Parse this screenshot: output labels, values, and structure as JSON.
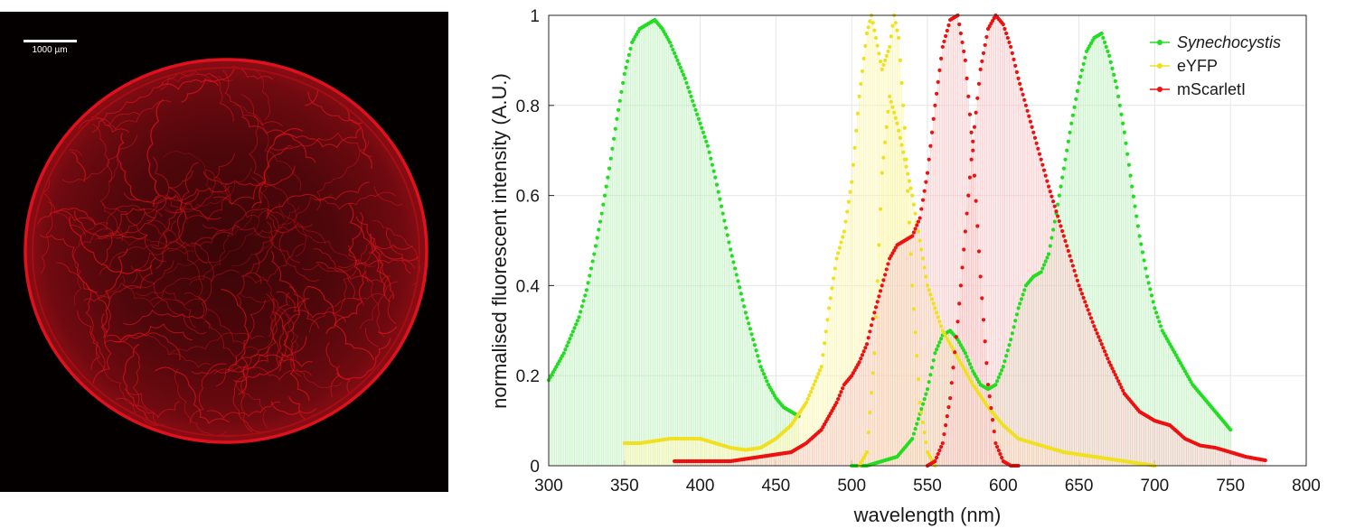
{
  "micrograph": {
    "scale_bar_label": "1000 µm",
    "colors": {
      "background": "#050000",
      "colony": "#e0101c"
    }
  },
  "chart_data": {
    "type": "line",
    "title": "",
    "xlabel": "wavelength (nm)",
    "ylabel": "normalised fluorescent intensity (A.U.)",
    "xlim": [
      300,
      800
    ],
    "ylim": [
      0,
      1
    ],
    "xticks": [
      300,
      350,
      400,
      450,
      500,
      550,
      600,
      650,
      700,
      750,
      800
    ],
    "yticks": [
      0,
      0.2,
      0.4,
      0.6,
      0.8,
      1
    ],
    "ytick_labels": [
      "0",
      "0.2",
      "0.4",
      "0.6",
      "0.8",
      "1"
    ],
    "grid": true,
    "legend_position": "top-right",
    "series": [
      {
        "name": "Synechocystis",
        "name_style": "italic",
        "color": "#22dd22",
        "fill": "#b8f0b8",
        "curves": [
          {
            "role": "excitation",
            "x": [
              300,
              305,
              310,
              315,
              320,
              325,
              330,
              335,
              340,
              345,
              350,
              355,
              360,
              365,
              370,
              375,
              380,
              385,
              390,
              395,
              400,
              405,
              410,
              415,
              420,
              425,
              430,
              435,
              440,
              445,
              450,
              455,
              460,
              465
            ],
            "y": [
              0.19,
              0.22,
              0.25,
              0.29,
              0.33,
              0.39,
              0.47,
              0.56,
              0.66,
              0.77,
              0.87,
              0.94,
              0.97,
              0.98,
              0.99,
              0.97,
              0.94,
              0.9,
              0.86,
              0.81,
              0.76,
              0.71,
              0.64,
              0.56,
              0.48,
              0.41,
              0.34,
              0.28,
              0.22,
              0.18,
              0.15,
              0.13,
              0.12,
              0.11
            ]
          },
          {
            "role": "emission",
            "x": [
              500,
              510,
              520,
              530,
              540,
              550,
              555,
              560,
              565,
              570,
              575,
              580,
              585,
              590,
              595,
              600,
              605,
              610,
              615,
              620,
              625,
              630,
              635,
              640,
              645,
              650,
              655,
              660,
              665,
              670,
              675,
              680,
              685,
              690,
              695,
              700,
              705,
              710,
              715,
              720,
              725,
              730,
              735,
              740,
              745,
              750
            ],
            "y": [
              0.0,
              0.0,
              0.01,
              0.02,
              0.06,
              0.17,
              0.25,
              0.29,
              0.3,
              0.28,
              0.25,
              0.21,
              0.18,
              0.17,
              0.18,
              0.22,
              0.28,
              0.35,
              0.4,
              0.42,
              0.43,
              0.47,
              0.56,
              0.66,
              0.76,
              0.85,
              0.92,
              0.95,
              0.96,
              0.91,
              0.84,
              0.74,
              0.62,
              0.51,
              0.42,
              0.35,
              0.3,
              0.27,
              0.24,
              0.21,
              0.18,
              0.16,
              0.14,
              0.12,
              0.1,
              0.08
            ]
          }
        ]
      },
      {
        "name": "eYFP",
        "color": "#f0e020",
        "fill": "#fbf6a8",
        "curves": [
          {
            "role": "excitation",
            "x": [
              350,
              360,
              370,
              380,
              390,
              400,
              410,
              420,
              430,
              440,
              450,
              460,
              470,
              480,
              485,
              490,
              495,
              500,
              505,
              510,
              513,
              516,
              520,
              525,
              528,
              531,
              535,
              540,
              545,
              550,
              555
            ],
            "y": [
              0.05,
              0.05,
              0.055,
              0.06,
              0.06,
              0.06,
              0.05,
              0.04,
              0.035,
              0.04,
              0.06,
              0.09,
              0.14,
              0.22,
              0.35,
              0.46,
              0.52,
              0.63,
              0.82,
              0.96,
              1.0,
              0.95,
              0.88,
              0.93,
              1.0,
              0.95,
              0.75,
              0.4,
              0.14,
              0.03,
              0.0
            ]
          },
          {
            "role": "emission",
            "x": [
              505,
              510,
              515,
              520,
              525,
              530,
              540,
              550,
              560,
              570,
              580,
              590,
              600,
              610,
              620,
              640,
              660,
              680,
              700
            ],
            "y": [
              0.0,
              0.03,
              0.25,
              0.65,
              0.82,
              0.76,
              0.6,
              0.4,
              0.3,
              0.24,
              0.18,
              0.13,
              0.09,
              0.06,
              0.05,
              0.03,
              0.02,
              0.01,
              0.0
            ]
          }
        ]
      },
      {
        "name": "mScarletI",
        "color": "#ee1111",
        "fill": "#f8c0c0",
        "curves": [
          {
            "role": "excitation",
            "x": [
              383,
              400,
              420,
              440,
              460,
              470,
              480,
              490,
              495,
              500,
              505,
              510,
              515,
              520,
              525,
              530,
              535,
              540,
              545,
              550,
              555,
              560,
              565,
              570,
              575,
              580,
              585,
              590,
              595,
              600,
              605,
              610
            ],
            "y": [
              0.01,
              0.01,
              0.01,
              0.02,
              0.03,
              0.05,
              0.08,
              0.14,
              0.18,
              0.2,
              0.23,
              0.27,
              0.34,
              0.4,
              0.46,
              0.49,
              0.5,
              0.51,
              0.55,
              0.65,
              0.8,
              0.93,
              0.99,
              1.0,
              0.9,
              0.7,
              0.42,
              0.18,
              0.05,
              0.01,
              0.0,
              0.0
            ]
          },
          {
            "role": "emission",
            "x": [
              550,
              555,
              560,
              565,
              570,
              575,
              580,
              585,
              590,
              595,
              600,
              605,
              610,
              620,
              630,
              640,
              650,
              660,
              670,
              680,
              690,
              700,
              710,
              720,
              730,
              740,
              750,
              760,
              773
            ],
            "y": [
              0.0,
              0.01,
              0.05,
              0.15,
              0.32,
              0.52,
              0.72,
              0.88,
              0.97,
              1.0,
              0.98,
              0.93,
              0.86,
              0.74,
              0.62,
              0.51,
              0.4,
              0.31,
              0.23,
              0.16,
              0.12,
              0.1,
              0.09,
              0.06,
              0.045,
              0.04,
              0.03,
              0.02,
              0.012
            ]
          }
        ]
      }
    ]
  }
}
